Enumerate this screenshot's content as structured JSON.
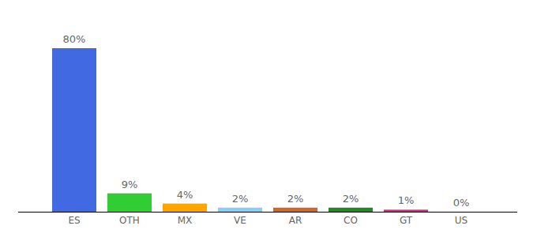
{
  "chart_data": {
    "type": "bar",
    "categories": [
      "ES",
      "OTH",
      "MX",
      "VE",
      "AR",
      "CO",
      "GT",
      "US"
    ],
    "values": [
      80,
      9,
      4,
      2,
      2,
      2,
      1,
      0
    ],
    "value_labels": [
      "80%",
      "9%",
      "4%",
      "2%",
      "2%",
      "2%",
      "1%",
      "0%"
    ],
    "colors": [
      "#4169e1",
      "#32cd32",
      "#ffa500",
      "#87cefa",
      "#d2691e",
      "#228b22",
      "#e0218a",
      "#8a2be2"
    ],
    "ylim": [
      0,
      80
    ],
    "data_labels": true,
    "tick_labels": "x"
  }
}
